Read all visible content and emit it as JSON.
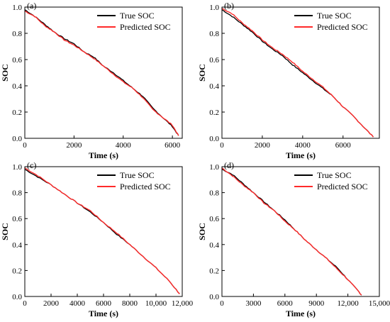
{
  "chart_data": [
    {
      "type": "line",
      "panel_label": "(a)",
      "xlabel": "Time (s)",
      "ylabel": "SOC",
      "xlim": [
        0,
        6400
      ],
      "ylim": [
        0,
        1.0
      ],
      "xticks": [
        0,
        2000,
        4000,
        6000
      ],
      "xtick_labels": [
        "0",
        "2000",
        "4000",
        "6000"
      ],
      "yticks": [
        0,
        0.2,
        0.4,
        0.6,
        0.8,
        1.0
      ],
      "ytick_labels": [
        "0.0",
        "0.2",
        "0.4",
        "0.6",
        "0.8",
        "1.0"
      ],
      "legend_position": "top-right",
      "series": [
        {
          "name": "True SOC",
          "color": "#000000",
          "x": [
            0,
            400,
            800,
            1200,
            1600,
            2000,
            2400,
            2800,
            3200,
            3600,
            4000,
            4400,
            4800,
            5200,
            5600,
            6000,
            6250
          ],
          "y": [
            0.98,
            0.93,
            0.87,
            0.81,
            0.76,
            0.72,
            0.66,
            0.62,
            0.55,
            0.5,
            0.44,
            0.38,
            0.32,
            0.23,
            0.16,
            0.09,
            0.02
          ]
        },
        {
          "name": "Predicted SOC",
          "color": "#ff2a2a",
          "x": [
            0,
            400,
            800,
            1200,
            1600,
            2000,
            2400,
            2800,
            3200,
            3600,
            4000,
            4400,
            4800,
            5200,
            5600,
            6000,
            6250
          ],
          "y": [
            0.97,
            0.93,
            0.86,
            0.81,
            0.75,
            0.71,
            0.66,
            0.61,
            0.55,
            0.49,
            0.43,
            0.38,
            0.31,
            0.22,
            0.16,
            0.1,
            0.02
          ]
        }
      ]
    },
    {
      "type": "line",
      "panel_label": "(b)",
      "xlabel": "Time (s)",
      "ylabel": "SOC",
      "xlim": [
        0,
        7800
      ],
      "ylim": [
        0,
        1.0
      ],
      "xticks": [
        0,
        2000,
        4000,
        6000
      ],
      "xtick_labels": [
        "0",
        "2000",
        "4000",
        "6000"
      ],
      "yticks": [
        0,
        0.2,
        0.4,
        0.6,
        0.8,
        1.0
      ],
      "ytick_labels": [
        "0.0",
        "0.2",
        "0.4",
        "0.6",
        "0.8",
        "1.0"
      ],
      "legend_position": "top-right",
      "series": [
        {
          "name": "True SOC",
          "color": "#000000",
          "x": [
            0,
            500,
            1000,
            1500,
            2000,
            2500,
            3000,
            3500,
            4000,
            4500,
            5000,
            5500,
            6000,
            6500,
            7000,
            7500
          ],
          "y": [
            0.98,
            0.93,
            0.87,
            0.81,
            0.74,
            0.68,
            0.63,
            0.56,
            0.5,
            0.44,
            0.38,
            0.32,
            0.24,
            0.17,
            0.09,
            0.01
          ]
        },
        {
          "name": "Predicted SOC",
          "color": "#ff2a2a",
          "x": [
            0,
            500,
            1000,
            1500,
            2000,
            2500,
            3000,
            3500,
            4000,
            4500,
            5000,
            5500,
            6000,
            6500,
            7000,
            7500
          ],
          "y": [
            0.99,
            0.95,
            0.88,
            0.82,
            0.75,
            0.69,
            0.64,
            0.58,
            0.51,
            0.45,
            0.39,
            0.32,
            0.24,
            0.17,
            0.09,
            0.01
          ]
        }
      ]
    },
    {
      "type": "line",
      "panel_label": "(c)",
      "xlabel": "Time (s)",
      "ylabel": "SOC",
      "xlim": [
        0,
        12000
      ],
      "ylim": [
        0,
        1.0
      ],
      "xticks": [
        0,
        2000,
        4000,
        6000,
        8000,
        10000,
        12000
      ],
      "xtick_labels": [
        "0",
        "2000",
        "4000",
        "6000",
        "8000",
        "10,000",
        "12,000"
      ],
      "yticks": [
        0,
        0.2,
        0.4,
        0.6,
        0.8,
        1.0
      ],
      "ytick_labels": [
        "0.0",
        "0.2",
        "0.4",
        "0.6",
        "0.8",
        "1.0"
      ],
      "legend_position": "top-right",
      "series": [
        {
          "name": "True SOC",
          "color": "#000000",
          "x": [
            0,
            1000,
            2000,
            3000,
            4000,
            5000,
            6000,
            7000,
            8000,
            9000,
            10000,
            11000,
            11800
          ],
          "y": [
            0.98,
            0.92,
            0.86,
            0.79,
            0.72,
            0.65,
            0.57,
            0.48,
            0.4,
            0.31,
            0.22,
            0.12,
            0.02
          ]
        },
        {
          "name": "Predicted SOC",
          "color": "#ff2a2a",
          "x": [
            0,
            1000,
            2000,
            3000,
            4000,
            5000,
            6000,
            7000,
            8000,
            9000,
            10000,
            11000,
            11800
          ],
          "y": [
            0.99,
            0.93,
            0.86,
            0.79,
            0.72,
            0.66,
            0.57,
            0.49,
            0.4,
            0.31,
            0.22,
            0.12,
            0.02
          ]
        }
      ]
    },
    {
      "type": "line",
      "panel_label": "(d)",
      "xlabel": "Time (s)",
      "ylabel": "SOC",
      "xlim": [
        0,
        15000
      ],
      "ylim": [
        0,
        1.0
      ],
      "xticks": [
        0,
        3000,
        6000,
        9000,
        12000,
        15000
      ],
      "xtick_labels": [
        "0",
        "3000",
        "6000",
        "9000",
        "12,000",
        "15,000"
      ],
      "yticks": [
        0,
        0.2,
        0.4,
        0.6,
        0.8,
        1.0
      ],
      "ytick_labels": [
        "0.0",
        "0.2",
        "0.4",
        "0.6",
        "0.8",
        "1.0"
      ],
      "legend_position": "top-right",
      "series": [
        {
          "name": "True SOC",
          "color": "#000000",
          "x": [
            0,
            1000,
            2000,
            3000,
            4000,
            5000,
            6000,
            7000,
            8000,
            9000,
            10000,
            11000,
            12000,
            13000,
            13300
          ],
          "y": [
            0.98,
            0.94,
            0.87,
            0.8,
            0.73,
            0.66,
            0.59,
            0.51,
            0.43,
            0.36,
            0.29,
            0.22,
            0.13,
            0.04,
            0.01
          ]
        },
        {
          "name": "Predicted SOC",
          "color": "#ff2a2a",
          "x": [
            0,
            1000,
            2000,
            3000,
            4000,
            5000,
            6000,
            7000,
            8000,
            9000,
            10000,
            11000,
            12000,
            13000,
            13300
          ],
          "y": [
            0.99,
            0.93,
            0.86,
            0.8,
            0.72,
            0.66,
            0.58,
            0.51,
            0.43,
            0.36,
            0.29,
            0.21,
            0.13,
            0.04,
            0.01
          ]
        }
      ]
    }
  ]
}
